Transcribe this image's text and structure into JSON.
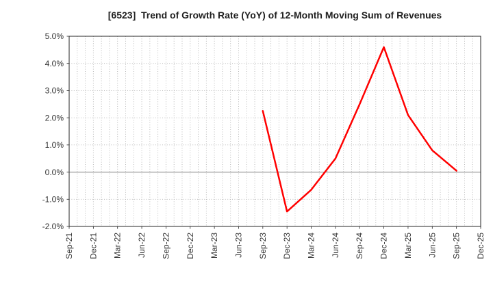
{
  "colors": {
    "background": "#ffffff",
    "line": "#ff0000",
    "grid": "#b3b3b3",
    "zero_line": "#8a8a8a",
    "spine": "#262626",
    "text": "#333333"
  },
  "chart_data": {
    "type": "line",
    "title": "[6523]  Trend of Growth Rate (YoY) of 12-Month Moving Sum of Revenues",
    "xlabel": "",
    "ylabel": "",
    "ylim": [
      -2.0,
      5.0
    ],
    "grid": {
      "vertical": "monthly, dotted",
      "horizontal": "every 1%, dotted",
      "zero_line": "solid gray"
    },
    "legend_position": "none",
    "y_ticks": [
      {
        "value": 5.0,
        "label": "5.0%"
      },
      {
        "value": 4.0,
        "label": "4.0%"
      },
      {
        "value": 3.0,
        "label": "3.0%"
      },
      {
        "value": 2.0,
        "label": "2.0%"
      },
      {
        "value": 1.0,
        "label": "1.0%"
      },
      {
        "value": 0.0,
        "label": "0.0%"
      },
      {
        "value": -1.0,
        "label": "-1.0%"
      },
      {
        "value": -2.0,
        "label": "-2.0%"
      }
    ],
    "x_tick_labels": [
      "Sep-21",
      "Dec-21",
      "Mar-22",
      "Jun-22",
      "Sep-22",
      "Dec-22",
      "Mar-23",
      "Jun-23",
      "Sep-23",
      "Dec-23",
      "Mar-24",
      "Jun-24",
      "Sep-24",
      "Dec-24",
      "Mar-25",
      "Jun-25",
      "Sep-25",
      "Dec-25"
    ],
    "months_per_tick": 3,
    "x_total_months": 51,
    "series": [
      {
        "name": "Growth Rate (YoY) of 12-Month Moving Sum of Revenues",
        "color": "#ff0000",
        "points": [
          {
            "x": "Sep-23",
            "y": 2.25
          },
          {
            "x": "Dec-23",
            "y": -1.45
          },
          {
            "x": "Mar-24",
            "y": -0.65
          },
          {
            "x": "Jun-24",
            "y": 0.5
          },
          {
            "x": "Sep-24",
            "y": 2.5
          },
          {
            "x": "Dec-24",
            "y": 4.6
          },
          {
            "x": "Mar-25",
            "y": 2.1
          },
          {
            "x": "Jun-25",
            "y": 0.8
          },
          {
            "x": "Sep-25",
            "y": 0.05
          }
        ]
      }
    ]
  }
}
